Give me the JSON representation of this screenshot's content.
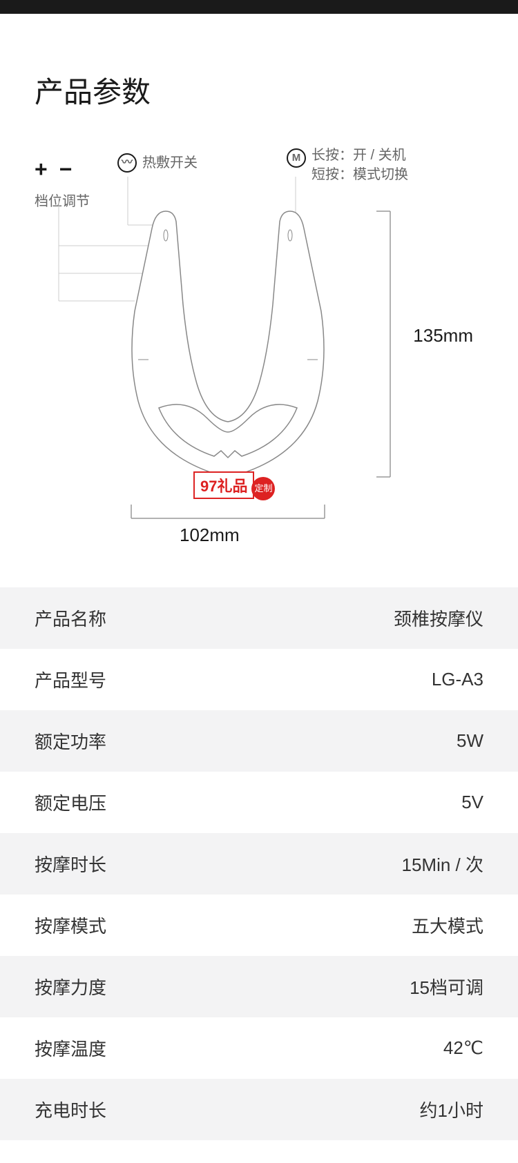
{
  "title": "产品参数",
  "callouts": {
    "plusminus": {
      "icons": "+ −",
      "label": "档位调节"
    },
    "heat": {
      "icon_text": "〰",
      "label": "热敷开关"
    },
    "mode": {
      "icon_text": "M",
      "line1": "长按：开 / 关机",
      "line2": "短按：模式切换"
    }
  },
  "dimensions": {
    "height": "135mm",
    "width": "102mm"
  },
  "watermark": {
    "box": "97礼品",
    "seal": "定制"
  },
  "diagram": {
    "stroke_color": "#cccccc",
    "device_stroke": "#888888",
    "device_fill": "#ffffff",
    "bracket_color": "#999999"
  },
  "specs": [
    {
      "label": "产品名称",
      "value": "颈椎按摩仪",
      "alt": true
    },
    {
      "label": "产品型号",
      "value": "LG-A3",
      "alt": false
    },
    {
      "label": "额定功率",
      "value": "5W",
      "alt": true
    },
    {
      "label": "额定电压",
      "value": "5V",
      "alt": false
    },
    {
      "label": "按摩时长",
      "value": "15Min / 次",
      "alt": true
    },
    {
      "label": "按摩模式",
      "value": "五大模式",
      "alt": false
    },
    {
      "label": "按摩力度",
      "value": "15档可调",
      "alt": true
    },
    {
      "label": "按摩温度",
      "value": "42℃",
      "alt": false
    },
    {
      "label": "充电时长",
      "value": "约1小时",
      "alt": true
    }
  ],
  "colors": {
    "bg": "#ffffff",
    "alt_row": "#f3f3f4",
    "text_primary": "#1a1a1a",
    "text_secondary": "#666666",
    "watermark_red": "#d22222"
  }
}
